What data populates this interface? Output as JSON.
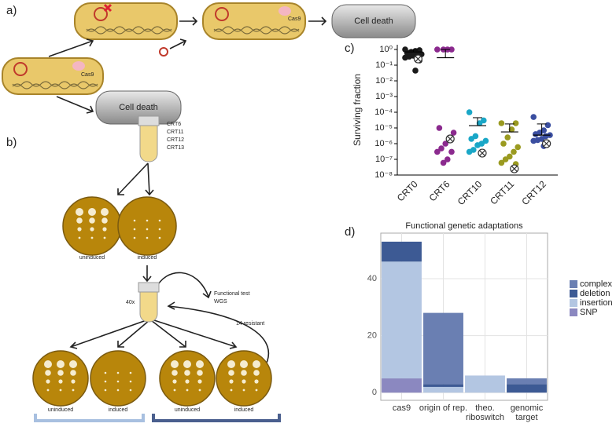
{
  "diagram": {
    "panel_labels": [
      "a)",
      "b)",
      "c)",
      "d)"
    ],
    "cas9_labels": [
      "Cas9",
      "Cas9"
    ],
    "cell_death": [
      "Cell death",
      "Cell death"
    ],
    "strains": [
      "CRT6",
      "CRT11",
      "CRT12",
      "CRT13"
    ],
    "plate_labels": [
      "uninduced",
      "induced",
      "uninduced",
      "induced",
      "uninduced",
      "induced"
    ],
    "dilution": "40x",
    "test": [
      "Functional test",
      "WGS"
    ],
    "resistant": "14 resistant"
  },
  "chart_data": [
    {
      "type": "strip",
      "ylabel": "Surviving fraction",
      "log_scale": true,
      "categories": [
        "CRT0",
        "CRT6",
        "CRT10",
        "CRT11",
        "CRT12"
      ],
      "colors": [
        "#1a1a1a",
        "#8b2a8e",
        "#1aa7c7",
        "#9a9a20",
        "#3a4ea0"
      ],
      "points": [
        [
          1,
          0.9,
          0.8,
          0.7,
          0.6,
          0.5,
          0.5,
          0.4,
          0.35,
          0.3,
          0.2,
          0.045
        ],
        [
          1,
          1,
          1,
          1,
          1e-05,
          5e-06,
          2e-06,
          1e-06,
          5e-07,
          3e-07,
          3e-07,
          1e-07,
          6e-08
        ],
        [
          0.0001,
          3e-05,
          2e-05,
          3e-06,
          2e-06,
          1.5e-06,
          1e-06,
          8e-07,
          4e-07,
          3e-07
        ],
        [
          2e-05,
          2e-05,
          8e-06,
          2.5e-06,
          1e-06,
          6e-07,
          3e-07,
          1.5e-07,
          1e-07,
          6e-08,
          5e-08
        ],
        [
          5e-05,
          1.5e-05,
          7e-06,
          5e-06,
          4e-06,
          3.5e-06,
          3e-06,
          2e-06,
          1.7e-06,
          1.5e-06,
          1e-06,
          7e-07
        ]
      ],
      "means": [
        0.7,
        0.3,
        1.4e-05,
        5.6e-06,
        3.5e-06
      ],
      "upper": [
        0.9,
        1,
        4.5e-05,
        1.8e-05,
        1.8e-05
      ],
      "marked": [
        0.25,
        2e-06,
        2.5e-07,
        2.5e-08,
        1e-06
      ],
      "ylim": [
        1e-08,
        2
      ],
      "yticks": [
        {
          "value": 1,
          "label": "10⁰"
        },
        {
          "value": 0.1,
          "label": "10⁻¹"
        },
        {
          "value": 0.01,
          "label": "10⁻²"
        },
        {
          "value": 0.001,
          "label": "10⁻³"
        },
        {
          "value": 0.0001,
          "label": "10⁻⁴"
        },
        {
          "value": 1e-05,
          "label": "10⁻⁵"
        },
        {
          "value": 1e-06,
          "label": "10⁻⁶"
        },
        {
          "value": 1e-07,
          "label": "10⁻⁷"
        },
        {
          "value": 1e-08,
          "label": "10⁻⁸"
        }
      ]
    },
    {
      "type": "bar",
      "stacked": true,
      "title": "Functional genetic adaptations",
      "grid": true,
      "legend": "right",
      "categories": [
        "cas9",
        "origin of rep.",
        "theo. riboswitch",
        "genomic target"
      ],
      "series": [
        {
          "name": "complex",
          "color": "#6a7fb2",
          "values": [
            0,
            25,
            0,
            2
          ]
        },
        {
          "name": "deletion",
          "color": "#3d5a94",
          "values": [
            7,
            1,
            0,
            3
          ]
        },
        {
          "name": "insertion",
          "color": "#b3c6e2",
          "values": [
            41,
            2,
            6,
            0
          ]
        },
        {
          "name": "SNP",
          "color": "#8b88c0",
          "values": [
            5,
            0,
            0,
            0
          ]
        }
      ],
      "ylim": [
        -2.7,
        56
      ],
      "yticks": [
        0,
        20,
        40
      ]
    }
  ]
}
